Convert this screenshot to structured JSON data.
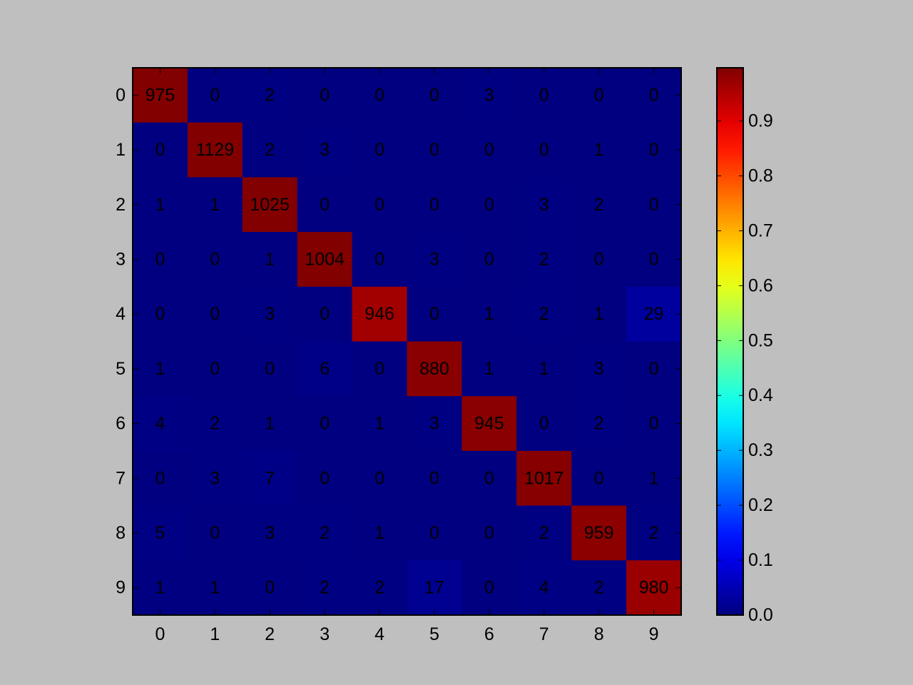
{
  "figure": {
    "background": "#bfbfbf"
  },
  "chart_data": {
    "type": "heatmap",
    "title": "",
    "xlabel": "",
    "ylabel": "",
    "x_tick_labels": [
      "0",
      "1",
      "2",
      "3",
      "4",
      "5",
      "6",
      "7",
      "8",
      "9"
    ],
    "y_tick_labels": [
      "0",
      "1",
      "2",
      "3",
      "4",
      "5",
      "6",
      "7",
      "8",
      "9"
    ],
    "values": [
      [
        975,
        0,
        2,
        0,
        0,
        0,
        3,
        0,
        0,
        0
      ],
      [
        0,
        1129,
        2,
        3,
        0,
        0,
        0,
        0,
        1,
        0
      ],
      [
        1,
        1,
        1025,
        0,
        0,
        0,
        0,
        3,
        2,
        0
      ],
      [
        0,
        0,
        1,
        1004,
        0,
        3,
        0,
        2,
        0,
        0
      ],
      [
        0,
        0,
        3,
        0,
        946,
        0,
        1,
        2,
        1,
        29
      ],
      [
        1,
        0,
        0,
        6,
        0,
        880,
        1,
        1,
        3,
        0
      ],
      [
        4,
        2,
        1,
        0,
        1,
        3,
        945,
        0,
        2,
        0
      ],
      [
        0,
        3,
        7,
        0,
        0,
        0,
        0,
        1017,
        0,
        1
      ],
      [
        5,
        0,
        3,
        2,
        1,
        0,
        0,
        2,
        959,
        2
      ],
      [
        1,
        1,
        0,
        2,
        2,
        17,
        0,
        4,
        2,
        980
      ]
    ],
    "normalization": "row",
    "colormap": "jet",
    "colorbar": {
      "range": [
        0.0,
        0.9969
      ],
      "tick_values": [
        0.0,
        0.1,
        0.2,
        0.3,
        0.4,
        0.5,
        0.6,
        0.7,
        0.8,
        0.9
      ],
      "tick_labels": [
        "0.0",
        "0.1",
        "0.2",
        "0.3",
        "0.4",
        "0.5",
        "0.6",
        "0.7",
        "0.8",
        "0.9"
      ]
    },
    "grid": false,
    "legend": "none"
  }
}
